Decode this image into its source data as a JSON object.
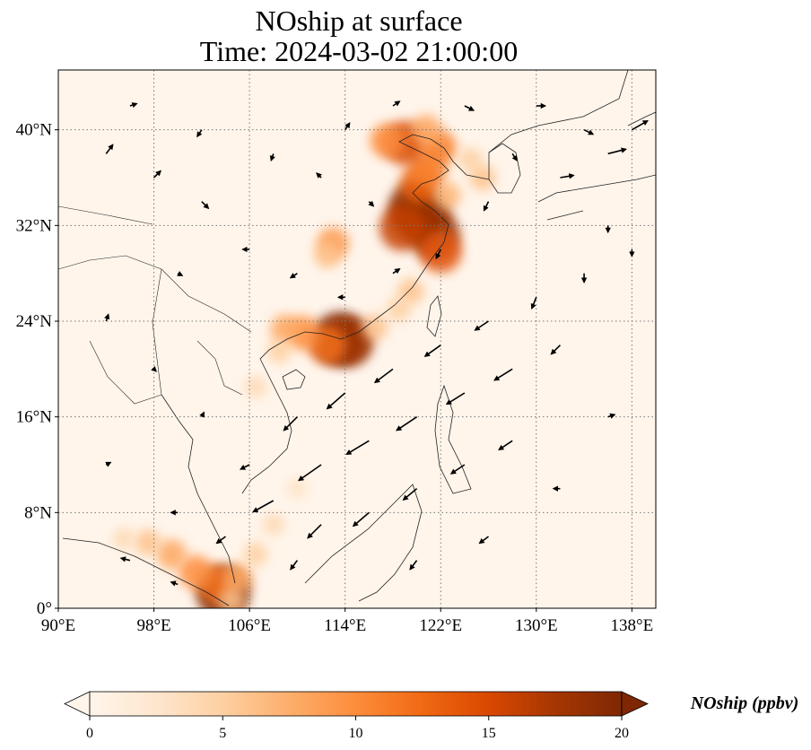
{
  "title_line1": "NOship at surface",
  "title_line2": "Time: 2024-03-02 21:00:00",
  "colorbar_label": "NOship (ppbv)",
  "colormap_stops": [
    "#fff5eb",
    "#fee6ce",
    "#fdd0a2",
    "#fdae6b",
    "#fd8d3c",
    "#f16913",
    "#d94801",
    "#a63603",
    "#7f2704"
  ],
  "map": {
    "lon_range": [
      90,
      140
    ],
    "lat_range": [
      0,
      45
    ],
    "lon_ticks": [
      {
        "value": 90,
        "label": "90°E"
      },
      {
        "value": 98,
        "label": "98°E"
      },
      {
        "value": 106,
        "label": "106°E"
      },
      {
        "value": 114,
        "label": "114°E"
      },
      {
        "value": 122,
        "label": "122°E"
      },
      {
        "value": 130,
        "label": "130°E"
      },
      {
        "value": 138,
        "label": "138°E"
      }
    ],
    "lat_ticks": [
      {
        "value": 0,
        "label": "0°"
      },
      {
        "value": 8,
        "label": "8°N"
      },
      {
        "value": 16,
        "label": "16°N"
      },
      {
        "value": 24,
        "label": "24°N"
      },
      {
        "value": 32,
        "label": "32°N"
      },
      {
        "value": 40,
        "label": "40°N"
      }
    ],
    "gridlines": "dotted"
  },
  "colorbar": {
    "min": 0,
    "max": 20,
    "ticks": [
      {
        "value": 0,
        "label": "0"
      },
      {
        "value": 5,
        "label": "5"
      },
      {
        "value": 10,
        "label": "10"
      },
      {
        "value": 15,
        "label": "15"
      },
      {
        "value": 20,
        "label": "20"
      }
    ],
    "extend": "both"
  },
  "plumes": [
    {
      "lon": 120.5,
      "lat": 32.8,
      "value": 20
    },
    {
      "lon": 119.8,
      "lat": 33.5,
      "value": 19
    },
    {
      "lon": 121.5,
      "lat": 31.2,
      "value": 18
    },
    {
      "lon": 122.0,
      "lat": 29.8,
      "value": 14
    },
    {
      "lon": 118.8,
      "lat": 31.8,
      "value": 16
    },
    {
      "lon": 120.3,
      "lat": 35.5,
      "value": 13
    },
    {
      "lon": 121.0,
      "lat": 36.8,
      "value": 11
    },
    {
      "lon": 119.0,
      "lat": 38.9,
      "value": 15
    },
    {
      "lon": 117.5,
      "lat": 39.1,
      "value": 10
    },
    {
      "lon": 121.8,
      "lat": 38.5,
      "value": 11
    },
    {
      "lon": 120.8,
      "lat": 40.0,
      "value": 8
    },
    {
      "lon": 122.5,
      "lat": 34.5,
      "value": 7
    },
    {
      "lon": 125.5,
      "lat": 36.0,
      "value": 6
    },
    {
      "lon": 124.5,
      "lat": 37.5,
      "value": 5
    },
    {
      "lon": 113.5,
      "lat": 22.5,
      "value": 20
    },
    {
      "lon": 114.3,
      "lat": 22.3,
      "value": 18
    },
    {
      "lon": 112.5,
      "lat": 22.0,
      "value": 12
    },
    {
      "lon": 110.5,
      "lat": 23.0,
      "value": 10
    },
    {
      "lon": 109.0,
      "lat": 23.3,
      "value": 8
    },
    {
      "lon": 116.5,
      "lat": 23.5,
      "value": 6
    },
    {
      "lon": 119.5,
      "lat": 26.5,
      "value": 6
    },
    {
      "lon": 118.5,
      "lat": 25.0,
      "value": 5
    },
    {
      "lon": 113.0,
      "lat": 30.5,
      "value": 9
    },
    {
      "lon": 112.5,
      "lat": 29.5,
      "value": 6
    },
    {
      "lon": 108.5,
      "lat": 21.5,
      "value": 5
    },
    {
      "lon": 106.5,
      "lat": 18.5,
      "value": 4
    },
    {
      "lon": 103.8,
      "lat": 1.3,
      "value": 20
    },
    {
      "lon": 103.3,
      "lat": 2.0,
      "value": 12
    },
    {
      "lon": 101.5,
      "lat": 3.0,
      "value": 10
    },
    {
      "lon": 99.5,
      "lat": 4.5,
      "value": 8
    },
    {
      "lon": 97.5,
      "lat": 5.5,
      "value": 6
    },
    {
      "lon": 105.0,
      "lat": 2.5,
      "value": 8
    },
    {
      "lon": 106.5,
      "lat": 4.5,
      "value": 5
    },
    {
      "lon": 108.0,
      "lat": 7.0,
      "value": 4
    },
    {
      "lon": 110.0,
      "lat": 10.0,
      "value": 3
    },
    {
      "lon": 95.5,
      "lat": 5.8,
      "value": 4
    },
    {
      "lon": 104.5,
      "lat": 0.6,
      "value": 6
    }
  ],
  "wind_vectors": [
    {
      "lon": 128,
      "lat": 20,
      "u": -4,
      "v": -2.5
    },
    {
      "lon": 124,
      "lat": 18,
      "u": -4,
      "v": -2.5
    },
    {
      "lon": 120,
      "lat": 16,
      "u": -4.5,
      "v": -3
    },
    {
      "lon": 116,
      "lat": 14,
      "u": -5,
      "v": -3
    },
    {
      "lon": 112,
      "lat": 12,
      "u": -5,
      "v": -3.5
    },
    {
      "lon": 108,
      "lat": 9,
      "u": -4.5,
      "v": -2.5
    },
    {
      "lon": 112,
      "lat": 7,
      "u": -3,
      "v": -3
    },
    {
      "lon": 116,
      "lat": 8,
      "u": -3.5,
      "v": -3
    },
    {
      "lon": 120,
      "lat": 10,
      "u": -3,
      "v": -2.5
    },
    {
      "lon": 124,
      "lat": 12,
      "u": -3,
      "v": -2
    },
    {
      "lon": 128,
      "lat": 14,
      "u": -3,
      "v": -2
    },
    {
      "lon": 132,
      "lat": 22,
      "u": -2,
      "v": -2
    },
    {
      "lon": 130,
      "lat": 26,
      "u": -1,
      "v": -2.5
    },
    {
      "lon": 134,
      "lat": 28,
      "u": 0,
      "v": -2
    },
    {
      "lon": 126,
      "lat": 24,
      "u": -3,
      "v": -2
    },
    {
      "lon": 122,
      "lat": 22,
      "u": -3.5,
      "v": -2.5
    },
    {
      "lon": 118,
      "lat": 20,
      "u": -4,
      "v": -3
    },
    {
      "lon": 114,
      "lat": 18,
      "u": -4,
      "v": -3.5
    },
    {
      "lon": 110,
      "lat": 16,
      "u": -3,
      "v": -3
    },
    {
      "lon": 106,
      "lat": 12,
      "u": -2,
      "v": -1
    },
    {
      "lon": 104,
      "lat": 6,
      "u": -2,
      "v": -1.5
    },
    {
      "lon": 100,
      "lat": 8,
      "u": -1.5,
      "v": 0
    },
    {
      "lon": 96,
      "lat": 4,
      "u": -2,
      "v": 0.5
    },
    {
      "lon": 120,
      "lat": 4,
      "u": -1.5,
      "v": -2
    },
    {
      "lon": 126,
      "lat": 6,
      "u": -2,
      "v": -1.5
    },
    {
      "lon": 136,
      "lat": 16,
      "u": 1.5,
      "v": 0.5
    },
    {
      "lon": 132,
      "lat": 36,
      "u": 3,
      "v": 0.5
    },
    {
      "lon": 136,
      "lat": 38,
      "u": 4,
      "v": 1
    },
    {
      "lon": 138,
      "lat": 40,
      "u": 3.5,
      "v": 2
    },
    {
      "lon": 134,
      "lat": 40,
      "u": 2,
      "v": -1
    },
    {
      "lon": 128,
      "lat": 38,
      "u": 1,
      "v": -1.5
    },
    {
      "lon": 126,
      "lat": 34,
      "u": -1,
      "v": -2
    },
    {
      "lon": 122,
      "lat": 30,
      "u": -1,
      "v": -2
    },
    {
      "lon": 118,
      "lat": 28,
      "u": 1.5,
      "v": 1
    },
    {
      "lon": 114,
      "lat": 26,
      "u": -1.5,
      "v": 0
    },
    {
      "lon": 110,
      "lat": 28,
      "u": -1.5,
      "v": -1
    },
    {
      "lon": 106,
      "lat": 30,
      "u": -1.5,
      "v": 0
    },
    {
      "lon": 102,
      "lat": 34,
      "u": 1.5,
      "v": -1.5
    },
    {
      "lon": 98,
      "lat": 36,
      "u": 1.5,
      "v": 1.5
    },
    {
      "lon": 94,
      "lat": 38,
      "u": 1.5,
      "v": 2
    },
    {
      "lon": 96,
      "lat": 42,
      "u": 1.5,
      "v": 0.5
    },
    {
      "lon": 102,
      "lat": 40,
      "u": -1,
      "v": -1.5
    },
    {
      "lon": 108,
      "lat": 38,
      "u": -0.5,
      "v": -1.5
    },
    {
      "lon": 114,
      "lat": 40,
      "u": 1,
      "v": 1.5
    },
    {
      "lon": 118,
      "lat": 42,
      "u": 1.5,
      "v": 1
    },
    {
      "lon": 124,
      "lat": 42,
      "u": 2,
      "v": -1
    },
    {
      "lon": 130,
      "lat": 42,
      "u": 2,
      "v": 0
    },
    {
      "lon": 100,
      "lat": 28,
      "u": 1,
      "v": -0.5
    },
    {
      "lon": 94,
      "lat": 24,
      "u": 0.5,
      "v": 1.5
    },
    {
      "lon": 98,
      "lat": 20,
      "u": 0.5,
      "v": -0.5
    },
    {
      "lon": 102,
      "lat": 16,
      "u": 0.5,
      "v": 1
    },
    {
      "lon": 94,
      "lat": 12,
      "u": 1,
      "v": 0.5
    },
    {
      "lon": 100,
      "lat": 2,
      "u": -1.5,
      "v": 0.5
    },
    {
      "lon": 110,
      "lat": 4,
      "u": -1.5,
      "v": -2
    },
    {
      "lon": 132,
      "lat": 10,
      "u": -1.5,
      "v": 0
    },
    {
      "lon": 136,
      "lat": 32,
      "u": 0,
      "v": -1.5
    },
    {
      "lon": 138,
      "lat": 30,
      "u": 0,
      "v": -1.5
    },
    {
      "lon": 116,
      "lat": 34,
      "u": 1,
      "v": -1
    },
    {
      "lon": 112,
      "lat": 36,
      "u": -1,
      "v": 1
    }
  ]
}
